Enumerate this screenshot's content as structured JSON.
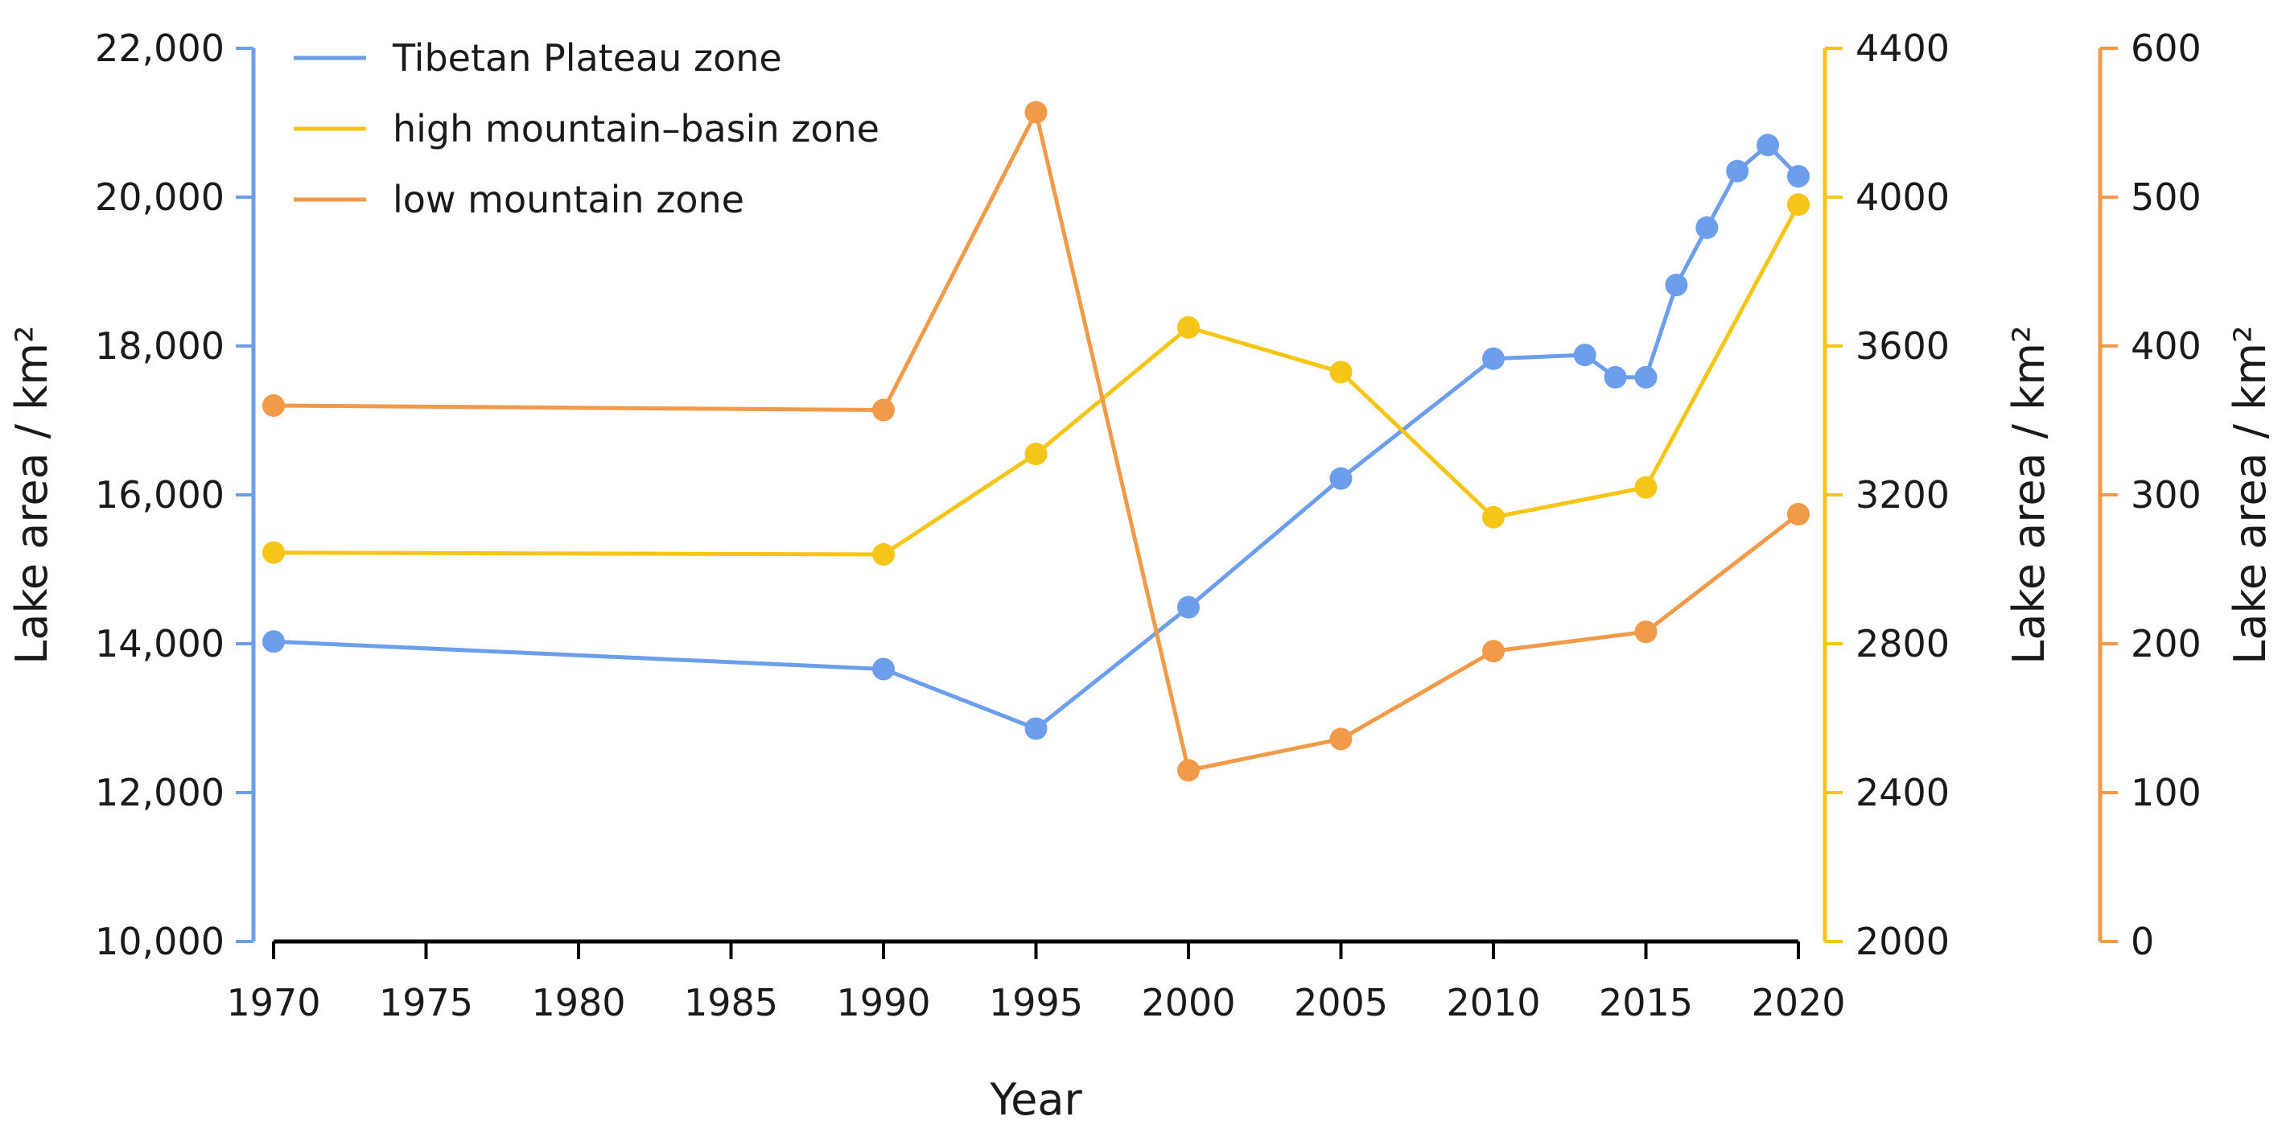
{
  "chart_data": {
    "type": "line",
    "title": "",
    "xlabel": "Year",
    "xlim": [
      1970,
      2020
    ],
    "xticks": [
      1970,
      1975,
      1980,
      1985,
      1990,
      1995,
      2000,
      2005,
      2010,
      2015,
      2020
    ],
    "axes": [
      {
        "id": "left",
        "label": "Lake area / km²",
        "color": "#6d9eeb",
        "ylim": [
          10000,
          22000
        ],
        "ticks": [
          10000,
          12000,
          14000,
          16000,
          18000,
          20000,
          22000
        ],
        "tick_labels": [
          "10,000",
          "12,000",
          "14,000",
          "16,000",
          "18,000",
          "20,000",
          "22,000"
        ]
      },
      {
        "id": "right1",
        "label": "Lake area / km²",
        "color": "#f5c518",
        "ylim": [
          2000,
          4400
        ],
        "ticks": [
          2000,
          2400,
          2800,
          3200,
          3600,
          4000,
          4400
        ],
        "tick_labels": [
          "2000",
          "2400",
          "2800",
          "3200",
          "3600",
          "4000",
          "4400"
        ]
      },
      {
        "id": "right2",
        "label": "Lake area / km²",
        "color": "#f09a4a",
        "ylim": [
          0,
          600
        ],
        "ticks": [
          0,
          100,
          200,
          300,
          400,
          500,
          600
        ],
        "tick_labels": [
          "0",
          "100",
          "200",
          "300",
          "400",
          "500",
          "600"
        ]
      }
    ],
    "series": [
      {
        "name": "Tibetan Plateau zone",
        "axis": "left",
        "color": "#6d9eeb",
        "x": [
          1970,
          1990,
          1995,
          2000,
          2005,
          2010,
          2013,
          2014,
          2015,
          2016,
          2017,
          2018,
          2019,
          2020
        ],
        "y": [
          14030,
          13660,
          12860,
          14490,
          16220,
          17830,
          17880,
          17580,
          17580,
          18820,
          19590,
          20350,
          20700,
          20280
        ]
      },
      {
        "name": "high mountain–basin zone",
        "axis": "right1",
        "color": "#f5c518",
        "x": [
          1970,
          1990,
          1995,
          2000,
          2005,
          2010,
          2015,
          2020
        ],
        "y": [
          3045,
          3040,
          3310,
          3650,
          3530,
          3140,
          3220,
          3980
        ]
      },
      {
        "name": "low mountain zone",
        "axis": "right2",
        "color": "#f09a4a",
        "x": [
          1970,
          1990,
          1995,
          2000,
          2005,
          2010,
          2015,
          2020
        ],
        "y": [
          360,
          357,
          557,
          115,
          136,
          195,
          208,
          287
        ]
      }
    ],
    "legend_position": "top-left"
  }
}
